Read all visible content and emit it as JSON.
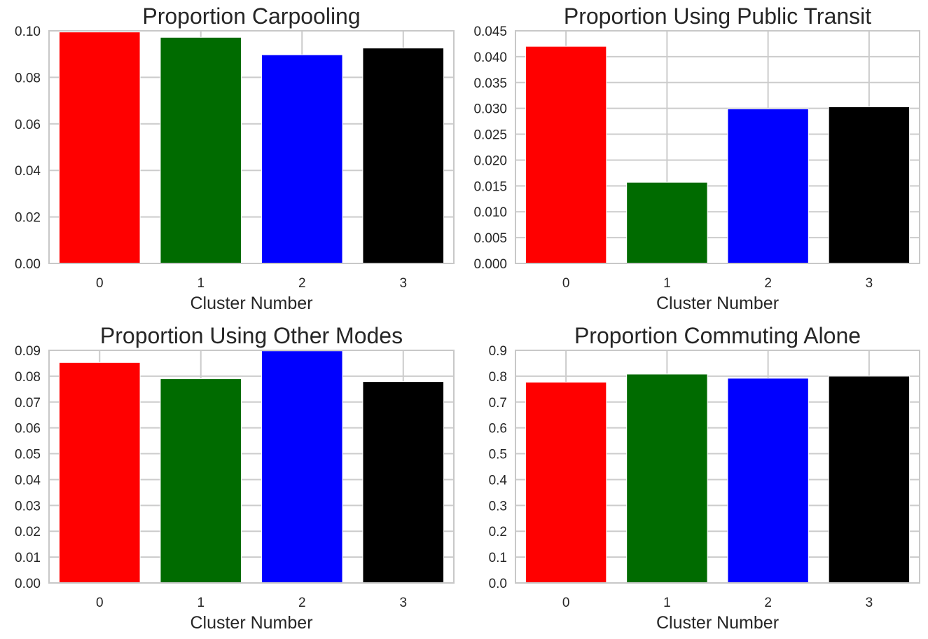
{
  "chart_data": [
    {
      "type": "bar",
      "title": "Proportion Carpooling",
      "xlabel": "Cluster Number",
      "ylabel": "",
      "categories": [
        "0",
        "1",
        "2",
        "3"
      ],
      "values": [
        0.0995,
        0.0972,
        0.0897,
        0.0926
      ],
      "colors": [
        "#ff0000",
        "#006b00",
        "#0000ff",
        "#000000"
      ],
      "ylim": [
        0,
        0.1
      ],
      "yticks": [
        0.0,
        0.02,
        0.04,
        0.06,
        0.08,
        0.1
      ],
      "ytick_labels": [
        "0.00",
        "0.02",
        "0.04",
        "0.06",
        "0.08",
        "0.10"
      ],
      "grid": true
    },
    {
      "type": "bar",
      "title": "Proportion Using Public Transit",
      "xlabel": "Cluster Number",
      "ylabel": "",
      "categories": [
        "0",
        "1",
        "2",
        "3"
      ],
      "values": [
        0.042,
        0.0157,
        0.0299,
        0.0303
      ],
      "colors": [
        "#ff0000",
        "#006b00",
        "#0000ff",
        "#000000"
      ],
      "ylim": [
        0,
        0.045
      ],
      "yticks": [
        0.0,
        0.005,
        0.01,
        0.015,
        0.02,
        0.025,
        0.03,
        0.035,
        0.04,
        0.045
      ],
      "ytick_labels": [
        "0.000",
        "0.005",
        "0.010",
        "0.015",
        "0.020",
        "0.025",
        "0.030",
        "0.035",
        "0.040",
        "0.045"
      ],
      "grid": true
    },
    {
      "type": "bar",
      "title": "Proportion Using Other Modes",
      "xlabel": "Cluster Number",
      "ylabel": "",
      "categories": [
        "0",
        "1",
        "2",
        "3"
      ],
      "values": [
        0.0853,
        0.079,
        0.0898,
        0.0779
      ],
      "colors": [
        "#ff0000",
        "#006b00",
        "#0000ff",
        "#000000"
      ],
      "ylim": [
        0,
        0.09
      ],
      "yticks": [
        0.0,
        0.01,
        0.02,
        0.03,
        0.04,
        0.05,
        0.06,
        0.07,
        0.08,
        0.09
      ],
      "ytick_labels": [
        "0.00",
        "0.01",
        "0.02",
        "0.03",
        "0.04",
        "0.05",
        "0.06",
        "0.07",
        "0.08",
        "0.09"
      ],
      "grid": true
    },
    {
      "type": "bar",
      "title": "Proportion Commuting Alone",
      "xlabel": "Cluster Number",
      "ylabel": "",
      "categories": [
        "0",
        "1",
        "2",
        "3"
      ],
      "values": [
        0.777,
        0.808,
        0.792,
        0.8
      ],
      "colors": [
        "#ff0000",
        "#006b00",
        "#0000ff",
        "#000000"
      ],
      "ylim": [
        0,
        0.9
      ],
      "yticks": [
        0.0,
        0.1,
        0.2,
        0.3,
        0.4,
        0.5,
        0.6,
        0.7,
        0.8,
        0.9
      ],
      "ytick_labels": [
        "0.0",
        "0.1",
        "0.2",
        "0.3",
        "0.4",
        "0.5",
        "0.6",
        "0.7",
        "0.8",
        "0.9"
      ],
      "grid": true
    }
  ]
}
